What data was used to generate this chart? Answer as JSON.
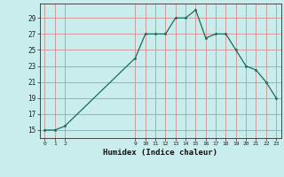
{
  "x": [
    0,
    1,
    2,
    9,
    10,
    11,
    12,
    13,
    14,
    15,
    16,
    17,
    18,
    19,
    20,
    21,
    22,
    23
  ],
  "y": [
    15,
    15,
    15.5,
    24,
    27,
    27,
    27,
    29,
    29,
    30,
    26.5,
    27,
    27,
    25,
    23,
    22.5,
    21,
    19
  ],
  "x_ticks": [
    0,
    1,
    2,
    9,
    10,
    11,
    12,
    13,
    14,
    15,
    16,
    17,
    18,
    19,
    20,
    21,
    22,
    23
  ],
  "y_ticks": [
    15,
    17,
    19,
    21,
    23,
    25,
    27,
    29
  ],
  "xlabel": "Humidex (Indice chaleur)",
  "bg_color": "#c8edec",
  "grid_color": "#d09090",
  "line_color": "#1a6b5e",
  "marker_color": "#1a6b5e",
  "xlim": [
    -0.5,
    23.5
  ],
  "ylim": [
    14,
    30.8
  ]
}
